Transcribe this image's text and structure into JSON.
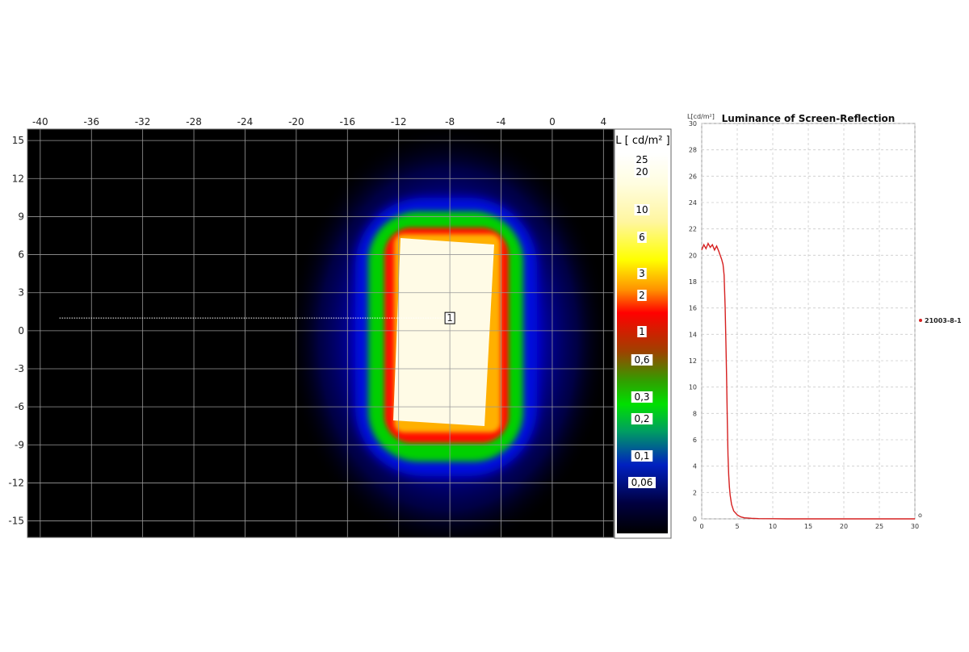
{
  "chart_data": [
    {
      "type": "heatmap",
      "title": "",
      "x_ticks": [
        "-40",
        "-36",
        "-32",
        "-28",
        "-24",
        "-20",
        "-16",
        "-12",
        "-8",
        "-4",
        "0",
        "4"
      ],
      "y_ticks": [
        "15",
        "12",
        "9",
        "6",
        "3",
        "0",
        "-3",
        "-6",
        "-9",
        "-12",
        "-15"
      ],
      "xlim": [
        -41,
        4.8
      ],
      "ylim": [
        -16.3,
        15.9
      ],
      "grid": true,
      "colorbar": {
        "title": "L [ cd/m² ]",
        "labels": [
          "25",
          "20",
          "10",
          "6",
          "3",
          "2",
          "1",
          "0,6",
          "0,3",
          "0,2",
          "0,1",
          "0,06"
        ],
        "colors": [
          "#ffffff",
          "#fffde0",
          "#fff6a0",
          "#ffff00",
          "#ff9000",
          "#ff0000",
          "#a04000",
          "#30a000",
          "#00e000",
          "#00a060",
          "#0020c0",
          "#000040",
          "#000000"
        ]
      },
      "bright_region": {
        "x_range": [
          -11.5,
          -5.0
        ],
        "y_range": [
          -7.0,
          7.5
        ],
        "peak_luminance": 20.5
      },
      "profile_line": {
        "label": "1",
        "x_start": -38.5,
        "x_end": -8.0,
        "y": 1.0
      }
    },
    {
      "type": "line",
      "title": "Luminance of Screen-Reflection",
      "ylabel": "L[cd/m²]",
      "xlabel": "",
      "xlim": [
        0,
        30
      ],
      "ylim": [
        0,
        30
      ],
      "x_ticks": [
        "0",
        "5",
        "10",
        "15",
        "20",
        "25",
        "30"
      ],
      "y_ticks": [
        "0",
        "2",
        "4",
        "6",
        "8",
        "10",
        "12",
        "14",
        "16",
        "18",
        "20",
        "22",
        "24",
        "26",
        "28",
        "30"
      ],
      "grid": true,
      "legend_position": "right",
      "series": [
        {
          "name": "21003-8-1",
          "color": "#d62020",
          "x": [
            0,
            0.3,
            0.6,
            0.9,
            1.2,
            1.5,
            1.8,
            2.1,
            2.4,
            2.6,
            2.8,
            3.0,
            3.15,
            3.3,
            3.4,
            3.5,
            3.6,
            3.7,
            3.8,
            3.9,
            4.0,
            4.2,
            4.5,
            5.0,
            5.5,
            6.0,
            7.0,
            8.0,
            10.0,
            12.0,
            15.0,
            20.0,
            25.0,
            30.0
          ],
          "y": [
            20.4,
            20.8,
            20.5,
            20.9,
            20.6,
            20.8,
            20.4,
            20.7,
            20.3,
            20.0,
            19.7,
            19.3,
            18.5,
            16.0,
            13.5,
            10.8,
            7.5,
            4.8,
            3.3,
            2.4,
            1.8,
            1.1,
            0.6,
            0.3,
            0.15,
            0.08,
            0.04,
            0.02,
            0.01,
            0.0,
            0.0,
            0.0,
            0.0,
            0.0
          ]
        }
      ],
      "end_marker": "o"
    }
  ]
}
